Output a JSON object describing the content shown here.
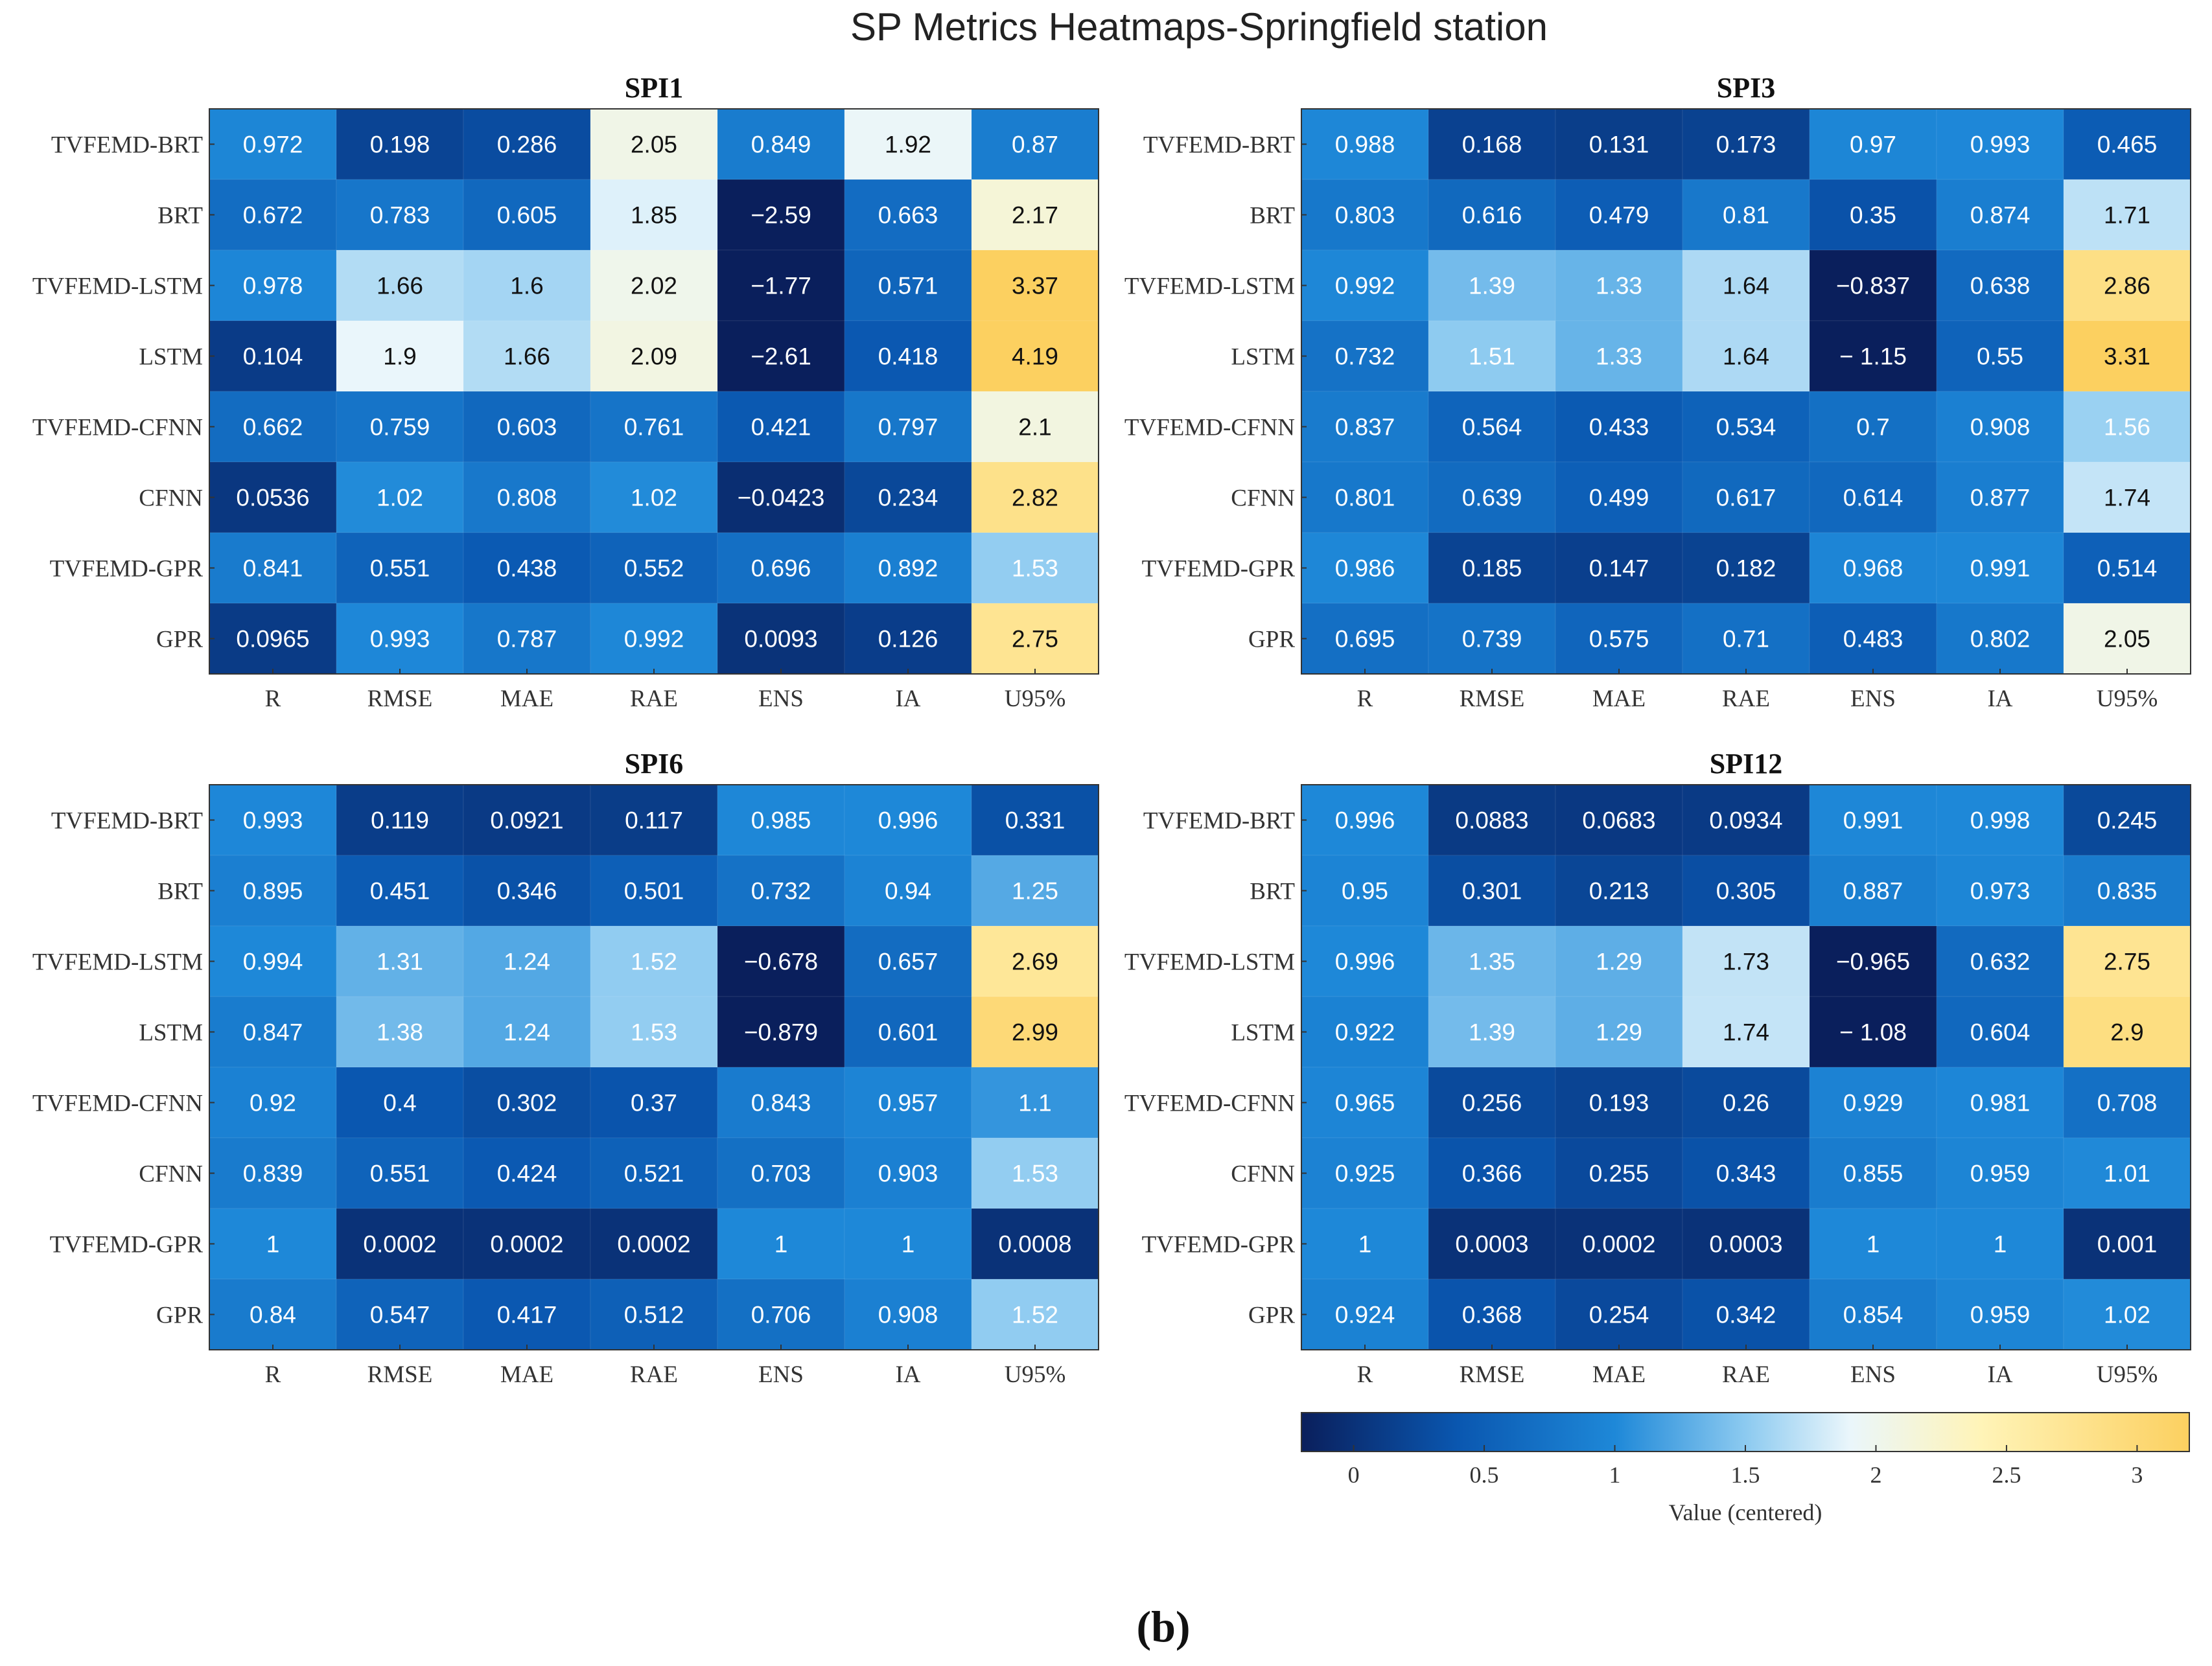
{
  "figure": {
    "title": "SP Metrics Heatmaps-Springfield station",
    "caption": "(b)"
  },
  "colorbar": {
    "label": "Value (centered)",
    "min": -0.2,
    "max": 3.2,
    "ticks": [
      "0",
      "0.5",
      "1",
      "1.5",
      "2",
      "2.5",
      "3"
    ],
    "tick_values": [
      0,
      0.5,
      1,
      1.5,
      2,
      2.5,
      3
    ],
    "stops": [
      {
        "v": -0.2,
        "color": "#0a1f5c"
      },
      {
        "v": 0.4,
        "color": "#0a57b0"
      },
      {
        "v": 1.0,
        "color": "#1e88d8"
      },
      {
        "v": 1.5,
        "color": "#8ccaf0"
      },
      {
        "v": 1.9,
        "color": "#eaf6fb"
      },
      {
        "v": 2.4,
        "color": "#fff4b8"
      },
      {
        "v": 3.2,
        "color": "#fcd060"
      }
    ]
  },
  "chart_data": [
    {
      "type": "heatmap",
      "title": "SPI1",
      "rows": [
        "TVFEMD-BRT",
        "BRT",
        "TVFEMD-LSTM",
        "LSTM",
        "TVFEMD-CFNN",
        "CFNN",
        "TVFEMD-GPR",
        "GPR"
      ],
      "columns": [
        "R",
        "RMSE",
        "MAE",
        "RAE",
        "ENS",
        "IA",
        "U95%"
      ],
      "labels": [
        [
          "0.972",
          "0.198",
          "0.286",
          "2.05",
          "0.849",
          "1.92",
          "0.87"
        ],
        [
          "0.672",
          "0.783",
          "0.605",
          "1.85",
          "−2.59",
          "0.663",
          "2.17"
        ],
        [
          "0.978",
          "1.66",
          "1.6",
          "2.02",
          "−1.77",
          "0.571",
          "3.37"
        ],
        [
          "0.104",
          "1.9",
          "1.66",
          "2.09",
          "−2.61",
          "0.418",
          "4.19"
        ],
        [
          "0.662",
          "0.759",
          "0.603",
          "0.761",
          "0.421",
          "0.797",
          "2.1"
        ],
        [
          "0.0536",
          "1.02",
          "0.808",
          "1.02",
          "−0.0423",
          "0.234",
          "2.82"
        ],
        [
          "0.841",
          "0.551",
          "0.438",
          "0.552",
          "0.696",
          "0.892",
          "1.53"
        ],
        [
          "0.0965",
          "0.993",
          "0.787",
          "0.992",
          "0.0093",
          "0.126",
          "2.75"
        ]
      ],
      "values": [
        [
          0.972,
          0.198,
          0.286,
          2.05,
          0.849,
          1.92,
          0.87
        ],
        [
          0.672,
          0.783,
          0.605,
          1.85,
          -2.59,
          0.663,
          2.17
        ],
        [
          0.978,
          1.66,
          1.6,
          2.02,
          -1.77,
          0.571,
          3.37
        ],
        [
          0.104,
          1.9,
          1.66,
          2.09,
          -2.61,
          0.418,
          4.19
        ],
        [
          0.662,
          0.759,
          0.603,
          0.761,
          0.421,
          0.797,
          2.1
        ],
        [
          0.0536,
          1.02,
          0.808,
          1.02,
          -0.0423,
          0.234,
          2.82
        ],
        [
          0.841,
          0.551,
          0.438,
          0.552,
          0.696,
          0.892,
          1.53
        ],
        [
          0.0965,
          0.993,
          0.787,
          0.992,
          0.0093,
          0.126,
          2.75
        ]
      ]
    },
    {
      "type": "heatmap",
      "title": "SPI3",
      "rows": [
        "TVFEMD-BRT",
        "BRT",
        "TVFEMD-LSTM",
        "LSTM",
        "TVFEMD-CFNN",
        "CFNN",
        "TVFEMD-GPR",
        "GPR"
      ],
      "columns": [
        "R",
        "RMSE",
        "MAE",
        "RAE",
        "ENS",
        "IA",
        "U95%"
      ],
      "labels": [
        [
          "0.988",
          "0.168",
          "0.131",
          "0.173",
          "0.97",
          "0.993",
          "0.465"
        ],
        [
          "0.803",
          "0.616",
          "0.479",
          "0.81",
          "0.35",
          "0.874",
          "1.71"
        ],
        [
          "0.992",
          "1.39",
          "1.33",
          "1.64",
          "−0.837",
          "0.638",
          "2.86"
        ],
        [
          "0.732",
          "1.51",
          "1.33",
          "1.64",
          "− 1.15",
          "0.55",
          "3.31"
        ],
        [
          "0.837",
          "0.564",
          "0.433",
          "0.534",
          "0.7",
          "0.908",
          "1.56"
        ],
        [
          "0.801",
          "0.639",
          "0.499",
          "0.617",
          "0.614",
          "0.877",
          "1.74"
        ],
        [
          "0.986",
          "0.185",
          "0.147",
          "0.182",
          "0.968",
          "0.991",
          "0.514"
        ],
        [
          "0.695",
          "0.739",
          "0.575",
          "0.71",
          "0.483",
          "0.802",
          "2.05"
        ]
      ],
      "values": [
        [
          0.988,
          0.168,
          0.131,
          0.173,
          0.97,
          0.993,
          0.465
        ],
        [
          0.803,
          0.616,
          0.479,
          0.81,
          0.35,
          0.874,
          1.71
        ],
        [
          0.992,
          1.39,
          1.33,
          1.64,
          -0.837,
          0.638,
          2.86
        ],
        [
          0.732,
          1.51,
          1.33,
          1.64,
          -1.15,
          0.55,
          3.31
        ],
        [
          0.837,
          0.564,
          0.433,
          0.534,
          0.7,
          0.908,
          1.56
        ],
        [
          0.801,
          0.639,
          0.499,
          0.617,
          0.614,
          0.877,
          1.74
        ],
        [
          0.986,
          0.185,
          0.147,
          0.182,
          0.968,
          0.991,
          0.514
        ],
        [
          0.695,
          0.739,
          0.575,
          0.71,
          0.483,
          0.802,
          2.05
        ]
      ]
    },
    {
      "type": "heatmap",
      "title": "SPI6",
      "rows": [
        "TVFEMD-BRT",
        "BRT",
        "TVFEMD-LSTM",
        "LSTM",
        "TVFEMD-CFNN",
        "CFNN",
        "TVFEMD-GPR",
        "GPR"
      ],
      "columns": [
        "R",
        "RMSE",
        "MAE",
        "RAE",
        "ENS",
        "IA",
        "U95%"
      ],
      "labels": [
        [
          "0.993",
          "0.119",
          "0.0921",
          "0.117",
          "0.985",
          "0.996",
          "0.331"
        ],
        [
          "0.895",
          "0.451",
          "0.346",
          "0.501",
          "0.732",
          "0.94",
          "1.25"
        ],
        [
          "0.994",
          "1.31",
          "1.24",
          "1.52",
          "−0.678",
          "0.657",
          "2.69"
        ],
        [
          "0.847",
          "1.38",
          "1.24",
          "1.53",
          "−0.879",
          "0.601",
          "2.99"
        ],
        [
          "0.92",
          "0.4",
          "0.302",
          "0.37",
          "0.843",
          "0.957",
          "1.1"
        ],
        [
          "0.839",
          "0.551",
          "0.424",
          "0.521",
          "0.703",
          "0.903",
          "1.53"
        ],
        [
          "1",
          "0.0002",
          "0.0002",
          "0.0002",
          "1",
          "1",
          "0.0008"
        ],
        [
          "0.84",
          "0.547",
          "0.417",
          "0.512",
          "0.706",
          "0.908",
          "1.52"
        ]
      ],
      "values": [
        [
          0.993,
          0.119,
          0.0921,
          0.117,
          0.985,
          0.996,
          0.331
        ],
        [
          0.895,
          0.451,
          0.346,
          0.501,
          0.732,
          0.94,
          1.25
        ],
        [
          0.994,
          1.31,
          1.24,
          1.52,
          -0.678,
          0.657,
          2.69
        ],
        [
          0.847,
          1.38,
          1.24,
          1.53,
          -0.879,
          0.601,
          2.99
        ],
        [
          0.92,
          0.4,
          0.302,
          0.37,
          0.843,
          0.957,
          1.1
        ],
        [
          0.839,
          0.551,
          0.424,
          0.521,
          0.703,
          0.903,
          1.53
        ],
        [
          1,
          0.0002,
          0.0002,
          0.0002,
          1,
          1,
          0.0008
        ],
        [
          0.84,
          0.547,
          0.417,
          0.512,
          0.706,
          0.908,
          1.52
        ]
      ]
    },
    {
      "type": "heatmap",
      "title": "SPI12",
      "rows": [
        "TVFEMD-BRT",
        "BRT",
        "TVFEMD-LSTM",
        "LSTM",
        "TVFEMD-CFNN",
        "CFNN",
        "TVFEMD-GPR",
        "GPR"
      ],
      "columns": [
        "R",
        "RMSE",
        "MAE",
        "RAE",
        "ENS",
        "IA",
        "U95%"
      ],
      "labels": [
        [
          "0.996",
          "0.0883",
          "0.0683",
          "0.0934",
          "0.991",
          "0.998",
          "0.245"
        ],
        [
          "0.95",
          "0.301",
          "0.213",
          "0.305",
          "0.887",
          "0.973",
          "0.835"
        ],
        [
          "0.996",
          "1.35",
          "1.29",
          "1.73",
          "−0.965",
          "0.632",
          "2.75"
        ],
        [
          "0.922",
          "1.39",
          "1.29",
          "1.74",
          "− 1.08",
          "0.604",
          "2.9"
        ],
        [
          "0.965",
          "0.256",
          "0.193",
          "0.26",
          "0.929",
          "0.981",
          "0.708"
        ],
        [
          "0.925",
          "0.366",
          "0.255",
          "0.343",
          "0.855",
          "0.959",
          "1.01"
        ],
        [
          "1",
          "0.0003",
          "0.0002",
          "0.0003",
          "1",
          "1",
          "0.001"
        ],
        [
          "0.924",
          "0.368",
          "0.254",
          "0.342",
          "0.854",
          "0.959",
          "1.02"
        ]
      ],
      "values": [
        [
          0.996,
          0.0883,
          0.0683,
          0.0934,
          0.991,
          0.998,
          0.245
        ],
        [
          0.95,
          0.301,
          0.213,
          0.305,
          0.887,
          0.973,
          0.835
        ],
        [
          0.996,
          1.35,
          1.29,
          1.73,
          -0.965,
          0.632,
          2.75
        ],
        [
          0.922,
          1.39,
          1.29,
          1.74,
          -1.08,
          0.604,
          2.9
        ],
        [
          0.965,
          0.256,
          0.193,
          0.26,
          0.929,
          0.981,
          0.708
        ],
        [
          0.925,
          0.366,
          0.255,
          0.343,
          0.855,
          0.959,
          1.01
        ],
        [
          1,
          0.0003,
          0.0002,
          0.0003,
          1,
          1,
          0.001
        ],
        [
          0.924,
          0.368,
          0.254,
          0.342,
          0.854,
          0.959,
          1.02
        ]
      ]
    }
  ]
}
